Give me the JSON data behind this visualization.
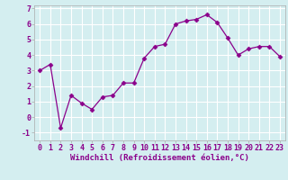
{
  "x": [
    0,
    1,
    2,
    3,
    4,
    5,
    6,
    7,
    8,
    9,
    10,
    11,
    12,
    13,
    14,
    15,
    16,
    17,
    18,
    19,
    20,
    21,
    22,
    23
  ],
  "y": [
    3.0,
    3.4,
    -0.7,
    1.4,
    0.9,
    0.5,
    1.3,
    1.4,
    2.2,
    2.2,
    3.8,
    4.55,
    4.7,
    6.0,
    6.2,
    6.3,
    6.6,
    6.1,
    5.1,
    4.0,
    4.4,
    4.55,
    4.55,
    3.9
  ],
  "line_color": "#8b008b",
  "marker": "D",
  "marker_size": 2.5,
  "bg_color": "#d4eef0",
  "grid_color": "#b0d8dc",
  "xlabel": "Windchill (Refroidissement éolien,°C)",
  "xlabel_fontsize": 6.5,
  "tick_fontsize": 6.0,
  "ylim": [
    -1.5,
    7.2
  ],
  "xlim": [
    -0.5,
    23.5
  ],
  "yticks": [
    -1,
    0,
    1,
    2,
    3,
    4,
    5,
    6,
    7
  ],
  "xticks": [
    0,
    1,
    2,
    3,
    4,
    5,
    6,
    7,
    8,
    9,
    10,
    11,
    12,
    13,
    14,
    15,
    16,
    17,
    18,
    19,
    20,
    21,
    22,
    23
  ]
}
